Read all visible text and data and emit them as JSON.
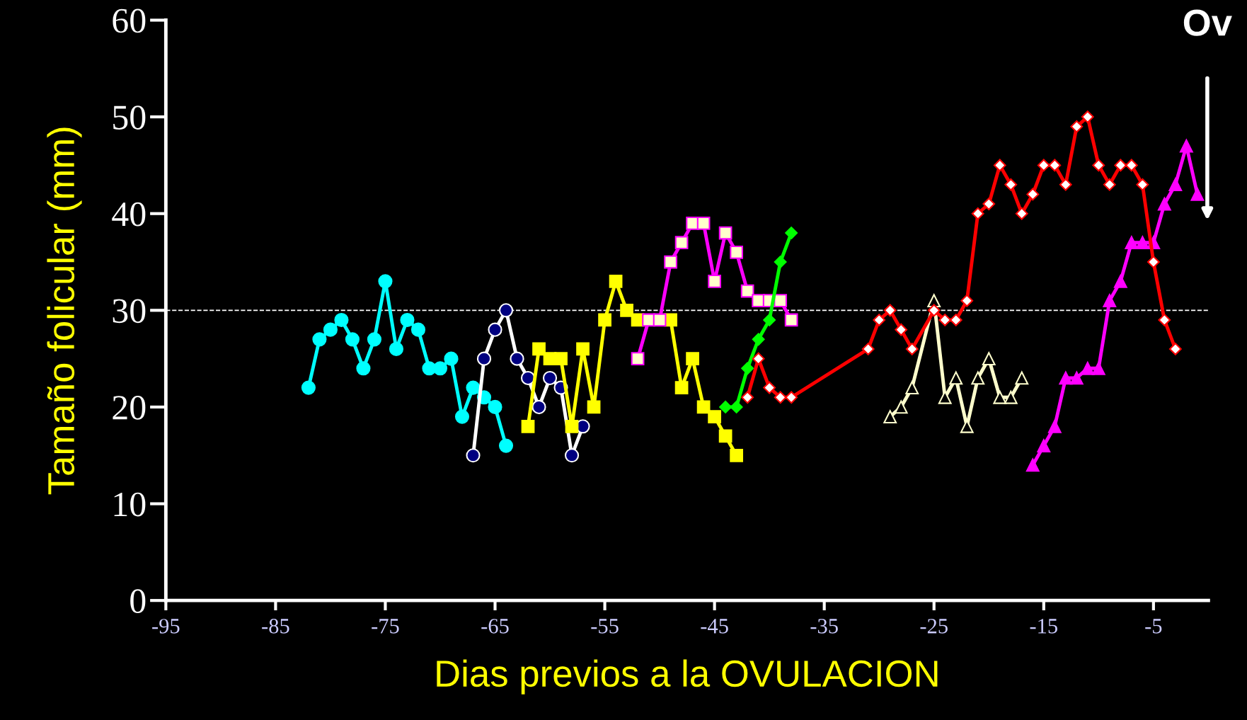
{
  "chart_data": {
    "type": "line",
    "xlabel": "Dias previos a la OVULACION",
    "ylabel": "Tamaño folicular (mm)",
    "xlim": [
      -95,
      0
    ],
    "xticks": [
      -95,
      -85,
      -75,
      -65,
      -55,
      -45,
      -35,
      -25,
      -15,
      -5
    ],
    "ylim": [
      0,
      60
    ],
    "yticks": [
      0,
      10,
      20,
      30,
      40,
      50,
      60
    ],
    "grid": false,
    "legend": false,
    "ref_lines": [
      {
        "axis": "y",
        "value": 30,
        "label": null,
        "color": "#ffffff",
        "line_style": "dashed"
      }
    ],
    "annotations": [
      "Ov"
    ],
    "series": [
      {
        "color": "#00ffff",
        "marker": "circle",
        "x": [
          -82,
          -81,
          -80,
          -79,
          -78,
          -77,
          -76,
          -75,
          -74,
          -73,
          -72,
          -71,
          -70,
          -69,
          -68,
          -67,
          -66,
          -65,
          -64
        ],
        "values": [
          22,
          27,
          28,
          29,
          27,
          24,
          27,
          33,
          26,
          29,
          28,
          24,
          24,
          25,
          19,
          22,
          21,
          20,
          16
        ]
      },
      {
        "color": "#ffffff",
        "marker": "circle",
        "x": [
          -67,
          -66,
          -65,
          -64,
          -63,
          -62,
          -61,
          -60,
          -59,
          -58,
          -57
        ],
        "values": [
          15,
          25,
          28,
          30,
          25,
          23,
          20,
          23,
          22,
          15,
          18
        ]
      },
      {
        "color": "#ffff00",
        "marker": "square",
        "x": [
          -62,
          -61,
          -60,
          -59,
          -58,
          -57,
          -56,
          -55,
          -54,
          -53,
          -52,
          -51,
          -50,
          -49,
          -48,
          -47,
          -46,
          -45,
          -44,
          -43
        ],
        "values": [
          18,
          26,
          25,
          25,
          18,
          26,
          20,
          29,
          33,
          30,
          29,
          null,
          null,
          29,
          22,
          25,
          20,
          19,
          17,
          15
        ]
      },
      {
        "color": "#ff00ff",
        "marker": "square",
        "x": [
          -52,
          -51,
          -50,
          -49,
          -48,
          -47,
          -46,
          -45,
          -44,
          -43,
          -42,
          -41,
          -40,
          -39,
          -38
        ],
        "values": [
          25,
          29,
          29,
          35,
          37,
          39,
          39,
          33,
          38,
          36,
          32,
          31,
          31,
          31,
          29
        ]
      },
      {
        "color": "#00ff00",
        "marker": "diamond",
        "x": [
          -44,
          -43,
          -42,
          -41,
          -40,
          -39,
          -38
        ],
        "values": [
          20,
          20,
          24,
          27,
          29,
          35,
          38
        ]
      },
      {
        "color": "#ff0000",
        "marker": "diamond",
        "x": [
          -42,
          -41,
          -40,
          -39,
          -38,
          -31,
          -30,
          -29,
          -28,
          -27,
          -25,
          -24,
          -23,
          -22,
          -21,
          -20,
          -19,
          -18,
          -17,
          -16,
          -15,
          -14,
          -13,
          -12,
          -11,
          -10,
          -9,
          -8,
          -7,
          -6,
          -5,
          -4,
          -3
        ],
        "values": [
          21,
          25,
          22,
          21,
          21,
          26,
          29,
          30,
          28,
          26,
          30,
          29,
          29,
          31,
          40,
          41,
          45,
          43,
          40,
          42,
          45,
          45,
          43,
          49,
          50,
          45,
          43,
          45,
          45,
          43,
          35,
          29,
          26
        ]
      },
      {
        "color": "#ffffcc",
        "marker": "triangle",
        "x": [
          -29,
          -28,
          -27,
          -25,
          -24,
          -23,
          -22,
          -21,
          -20,
          -19,
          -18,
          -17
        ],
        "values": [
          19,
          20,
          22,
          31,
          21,
          23,
          18,
          23,
          25,
          21,
          21,
          23
        ]
      },
      {
        "color": "#ff00ff",
        "marker": "triangle",
        "x": [
          -16,
          -15,
          -14,
          -13,
          -12,
          -11,
          -10,
          -9,
          -8,
          -7,
          -6,
          -5,
          -4,
          -3,
          -2,
          -1
        ],
        "values": [
          14,
          16,
          18,
          23,
          23,
          24,
          24,
          31,
          33,
          37,
          37,
          37,
          41,
          43,
          47,
          42
        ]
      }
    ]
  }
}
